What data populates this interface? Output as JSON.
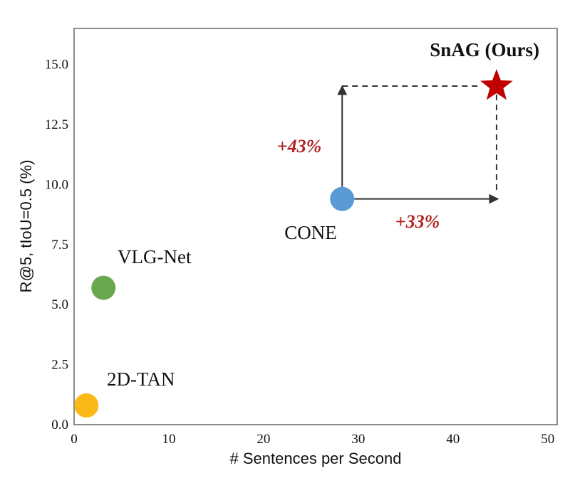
{
  "chart_data": {
    "type": "scatter",
    "xlabel": "# Sentences per Second",
    "ylabel": "R@5, tIoU=0.5  (%)",
    "xlim": [
      0,
      51
    ],
    "ylim": [
      0,
      16.5
    ],
    "xticks": [
      0,
      10,
      20,
      30,
      40,
      50
    ],
    "yticks": [
      "0.0",
      "2.5",
      "5.0",
      "7.5",
      "10.0",
      "12.5",
      "15.0"
    ],
    "grid": false,
    "points": [
      {
        "label": "2D-TAN",
        "x": 1.3,
        "y": 0.8,
        "color": "#FBB917",
        "marker": "circle"
      },
      {
        "label": "VLG-Net",
        "x": 3.1,
        "y": 5.7,
        "color": "#6AA84F",
        "marker": "circle"
      },
      {
        "label": "CONE",
        "x": 28.3,
        "y": 9.4,
        "color": "#5B9BD5",
        "marker": "circle"
      },
      {
        "label": "SnAG (Ours)",
        "x": 44.6,
        "y": 14.1,
        "color": "#C00000",
        "marker": "star"
      }
    ],
    "annotations": [
      {
        "text": "+43%",
        "color": "#B22222"
      },
      {
        "text": "+33%",
        "color": "#B22222"
      }
    ]
  }
}
